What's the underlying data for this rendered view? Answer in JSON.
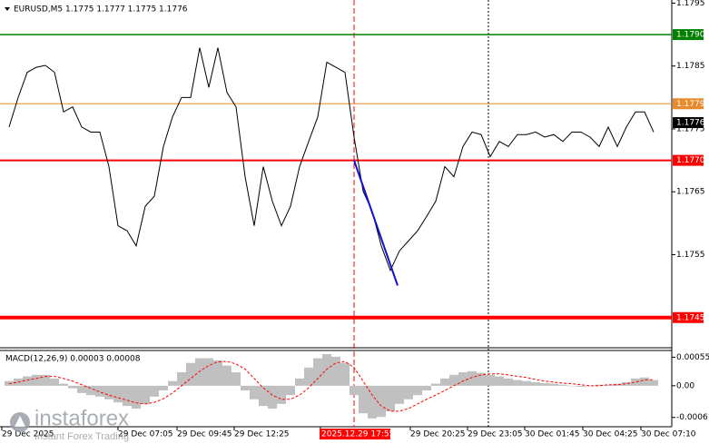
{
  "chart_data": {
    "type": "line",
    "title": "EURUSD,M5  1.1775 1.1777 1.1775 1.1776",
    "line_color": "#000000",
    "values": [
      1.17753,
      1.178,
      1.1784,
      1.17848,
      1.17851,
      1.1784,
      1.17777,
      1.17785,
      1.17753,
      1.17745,
      1.17745,
      1.1769,
      1.17596,
      1.17588,
      1.17564,
      1.17627,
      1.17643,
      1.17722,
      1.17769,
      1.178,
      1.178,
      1.17879,
      1.17816,
      1.17879,
      1.17808,
      1.17785,
      1.17674,
      1.17596,
      1.1769,
      1.17635,
      1.17596,
      1.17627,
      1.1769,
      1.1773,
      1.17769,
      1.17856,
      1.17848,
      1.1784,
      1.17737,
      1.17651,
      1.17619,
      1.17564,
      1.17525,
      1.17556,
      1.17572,
      1.17588,
      1.17611,
      1.17635,
      1.1769,
      1.17674,
      1.17722,
      1.17745,
      1.17741,
      1.17706,
      1.1773,
      1.17722,
      1.17741,
      1.17741,
      1.17745,
      1.17737,
      1.17741,
      1.1773,
      1.17745,
      1.17745,
      1.17737,
      1.17722,
      1.17753,
      1.17722,
      1.17753,
      1.17777,
      1.17777,
      1.17745
    ],
    "ylim": [
      1.17402,
      1.17955
    ],
    "yticks": [
      1.1795,
      1.1785,
      1.1775,
      1.1765,
      1.1755
    ],
    "levels": [
      {
        "value": 1.179,
        "label": "1.1790",
        "color": "#008000"
      },
      {
        "value": 1.1779,
        "label": "1.1779",
        "color": "#e8892c"
      },
      {
        "value": 1.177,
        "label": "1.1770",
        "color": "#ff0000"
      },
      {
        "value": 1.1745,
        "label": "1.1745",
        "color": "#ff0000"
      }
    ],
    "current_price": 1.1776,
    "trend_line": {
      "color": "#1010d0",
      "values": [
        1.177,
        1.17501
      ]
    },
    "x_labels": [
      "29 Dec 2025",
      "29 Dec 07:05",
      "29 Dec 09:45",
      "29 Dec 12:25",
      "2025.12.29 17:55",
      "29 Dec 20:25",
      "29 Dec 23:05",
      "30 Dec 01:45",
      "30 Dec 04:25",
      "30 Dec 07:10"
    ],
    "macd": {
      "label": "MACD(12,26,9) 0.00003 0.00008",
      "ylim": [
        -0.00079,
        0.00068
      ],
      "yticks": [
        0.00055,
        {
          "value": 0,
          "label": "0.00"
        },
        -0.00061
      ],
      "histogram_color": "#c0c0c0",
      "signal_color": "#ff0000",
      "histogram": [
        9e-05,
        0.00014,
        0.00018,
        0.00021,
        0.00021,
        0.00014,
        4e-05,
        -5e-05,
        -0.00014,
        -0.00018,
        -0.00021,
        -0.00026,
        -0.00032,
        -0.00039,
        -0.00044,
        -0.00035,
        -0.00021,
        -9e-05,
        9e-05,
        0.00026,
        0.00044,
        0.00053,
        0.00053,
        0.00049,
        0.00039,
        0.00026,
        -9e-05,
        -0.00026,
        -0.00039,
        -0.00044,
        -0.00035,
        -0.00018,
        0.00014,
        0.00035,
        0.00053,
        0.00061,
        0.00056,
        0.00044,
        -0.00018,
        -0.00053,
        -0.00063,
        -0.0006,
        -0.00049,
        -0.00035,
        -0.00026,
        -0.00018,
        -9e-05,
        4e-05,
        0.00014,
        0.00021,
        0.00026,
        0.00028,
        0.00025,
        0.00021,
        0.00018,
        0.00014,
        0.00011,
        9e-05,
        7e-05,
        5e-05,
        4e-05,
        2e-05,
        0,
        -2e-05,
        0,
        2e-05,
        2e-05,
        4e-05,
        7e-05,
        0.00014,
        0.00016,
        0.00011
      ],
      "signal": [
        4e-05,
        7e-05,
        0.00011,
        0.00014,
        0.00018,
        0.00018,
        0.00014,
        9e-05,
        2e-05,
        -5e-05,
        -0.00012,
        -0.00018,
        -0.00023,
        -0.00028,
        -0.00033,
        -0.00035,
        -0.00032,
        -0.00025,
        -0.00014,
        0,
        0.00014,
        0.00028,
        0.00039,
        0.00046,
        0.00047,
        0.00042,
        0.00032,
        0.00014,
        -4e-05,
        -0.00018,
        -0.00026,
        -0.00026,
        -0.00018,
        -4e-05,
        0.00014,
        0.00032,
        0.00044,
        0.00047,
        0.00035,
        9e-05,
        -0.00018,
        -0.00039,
        -0.00049,
        -0.00049,
        -0.00044,
        -0.00035,
        -0.00026,
        -0.00018,
        -9e-05,
        0,
        9e-05,
        0.00016,
        0.00021,
        0.00023,
        0.00023,
        0.00021,
        0.00018,
        0.00016,
        0.00012,
        9e-05,
        7e-05,
        5e-05,
        4e-05,
        2e-05,
        0,
        0,
        2e-05,
        2e-05,
        4e-05,
        7e-05,
        0.00011,
        0.00012
      ]
    },
    "watermark": {
      "brand": "instaforex",
      "tagline": "Instant Forex Trading"
    }
  }
}
